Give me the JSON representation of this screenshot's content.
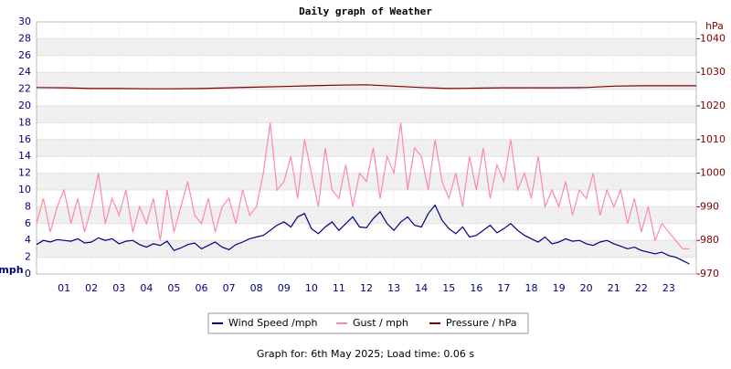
{
  "chart_data": {
    "type": "line",
    "title": "Daily graph of Weather",
    "ylabel": "mph",
    "y2label": "hPa",
    "footer": "Graph for: 6th May 2025; Load time: 0.06 s",
    "xlim": [
      0,
      24
    ],
    "xticks": [
      {
        "value": 1,
        "label": "01"
      },
      {
        "value": 2,
        "label": "02"
      },
      {
        "value": 3,
        "label": "03"
      },
      {
        "value": 4,
        "label": "04"
      },
      {
        "value": 5,
        "label": "05"
      },
      {
        "value": 6,
        "label": "06"
      },
      {
        "value": 7,
        "label": "07"
      },
      {
        "value": 8,
        "label": "08"
      },
      {
        "value": 9,
        "label": "09"
      },
      10,
      11,
      12,
      13,
      14,
      15,
      16,
      17,
      18,
      19,
      20,
      21,
      22,
      23
    ],
    "ylim": [
      0,
      30
    ],
    "yticks": [
      0,
      2,
      4,
      6,
      8,
      10,
      12,
      14,
      16,
      18,
      20,
      22,
      24,
      26,
      28,
      30
    ],
    "y2lim": [
      970,
      1045
    ],
    "y2ticks": [
      970,
      980,
      990,
      1000,
      1010,
      1020,
      1030,
      1040
    ],
    "grid": true,
    "x": [
      0,
      0.25,
      0.5,
      0.75,
      1,
      1.25,
      1.5,
      1.75,
      2,
      2.25,
      2.5,
      2.75,
      3,
      3.25,
      3.5,
      3.75,
      4,
      4.25,
      4.5,
      4.75,
      5,
      5.25,
      5.5,
      5.75,
      6,
      6.25,
      6.5,
      6.75,
      7,
      7.25,
      7.5,
      7.75,
      8,
      8.25,
      8.5,
      8.75,
      9,
      9.25,
      9.5,
      9.75,
      10,
      10.25,
      10.5,
      10.75,
      11,
      11.25,
      11.5,
      11.75,
      12,
      12.25,
      12.5,
      12.75,
      13,
      13.25,
      13.5,
      13.75,
      14,
      14.25,
      14.5,
      14.75,
      15,
      15.25,
      15.5,
      15.75,
      16,
      16.25,
      16.5,
      16.75,
      17,
      17.25,
      17.5,
      17.75,
      18,
      18.25,
      18.5,
      18.75,
      19,
      19.25,
      19.5,
      19.75,
      20,
      20.25,
      20.5,
      20.75,
      21,
      21.25,
      21.5,
      21.75,
      22,
      22.25,
      22.5,
      22.75,
      23,
      23.25,
      23.5,
      23.75
    ],
    "series": [
      {
        "name": "Wind Speed /mph",
        "color": "#000080",
        "values": [
          3.5,
          4,
          3.8,
          4.1,
          4,
          3.9,
          4.2,
          3.7,
          3.8,
          4.3,
          4,
          4.2,
          3.6,
          3.9,
          4,
          3.5,
          3.2,
          3.6,
          3.4,
          3.9,
          2.8,
          3.1,
          3.5,
          3.7,
          3,
          3.4,
          3.8,
          3.2,
          2.9,
          3.5,
          3.8,
          4.2,
          4.4,
          4.6,
          5.2,
          5.8,
          6.2,
          5.6,
          6.8,
          7.2,
          5.4,
          4.8,
          5.6,
          6.2,
          5.2,
          6,
          6.8,
          5.6,
          5.5,
          6.6,
          7.4,
          6,
          5.2,
          6.2,
          6.8,
          5.8,
          5.6,
          7.2,
          8.2,
          6.4,
          5.4,
          4.8,
          5.6,
          4.4,
          4.6,
          5.2,
          5.8,
          4.9,
          5.4,
          6,
          5.2,
          4.6,
          4.2,
          3.8,
          4.4,
          3.6,
          3.8,
          4.2,
          3.9,
          4,
          3.6,
          3.4,
          3.8,
          4,
          3.6,
          3.3,
          3,
          3.2,
          2.8,
          2.6,
          2.4,
          2.6,
          2.2,
          2,
          1.6,
          1.2
        ]
      },
      {
        "name": "Gust / mph",
        "color": "#ff88aa",
        "values": [
          6,
          9,
          5,
          8,
          10,
          6,
          9,
          5,
          8,
          12,
          6,
          9,
          7,
          10,
          5,
          8,
          6,
          9,
          4,
          10,
          5,
          8,
          11,
          7,
          6,
          9,
          5,
          8,
          9,
          6,
          10,
          7,
          8,
          12,
          18,
          10,
          11,
          14,
          9,
          16,
          12,
          8,
          15,
          10,
          9,
          13,
          8,
          12,
          11,
          15,
          9,
          14,
          12,
          18,
          10,
          15,
          14,
          10,
          16,
          11,
          9,
          12,
          8,
          14,
          10,
          15,
          9,
          13,
          11,
          16,
          10,
          12,
          9,
          14,
          8,
          10,
          8,
          11,
          7,
          10,
          9,
          12,
          7,
          10,
          8,
          10,
          6,
          9,
          5,
          8,
          4,
          6,
          5,
          4,
          3,
          3
        ]
      },
      {
        "name": "Pressure / hPa",
        "color": "#800000",
        "axis": "y2",
        "x": [
          0,
          1,
          2,
          3,
          4,
          5,
          6,
          7,
          8,
          9,
          10,
          11,
          12,
          13,
          14,
          15,
          16,
          17,
          18,
          19,
          20,
          21,
          22,
          23,
          24
        ],
        "values": [
          1025.5,
          1025.4,
          1025.2,
          1025.2,
          1025.1,
          1025.1,
          1025.2,
          1025.4,
          1025.6,
          1025.8,
          1026,
          1026.2,
          1026.3,
          1025.9,
          1025.5,
          1025.2,
          1025.3,
          1025.4,
          1025.4,
          1025.4,
          1025.5,
          1025.9,
          1026,
          1026,
          1026
        ]
      }
    ]
  }
}
